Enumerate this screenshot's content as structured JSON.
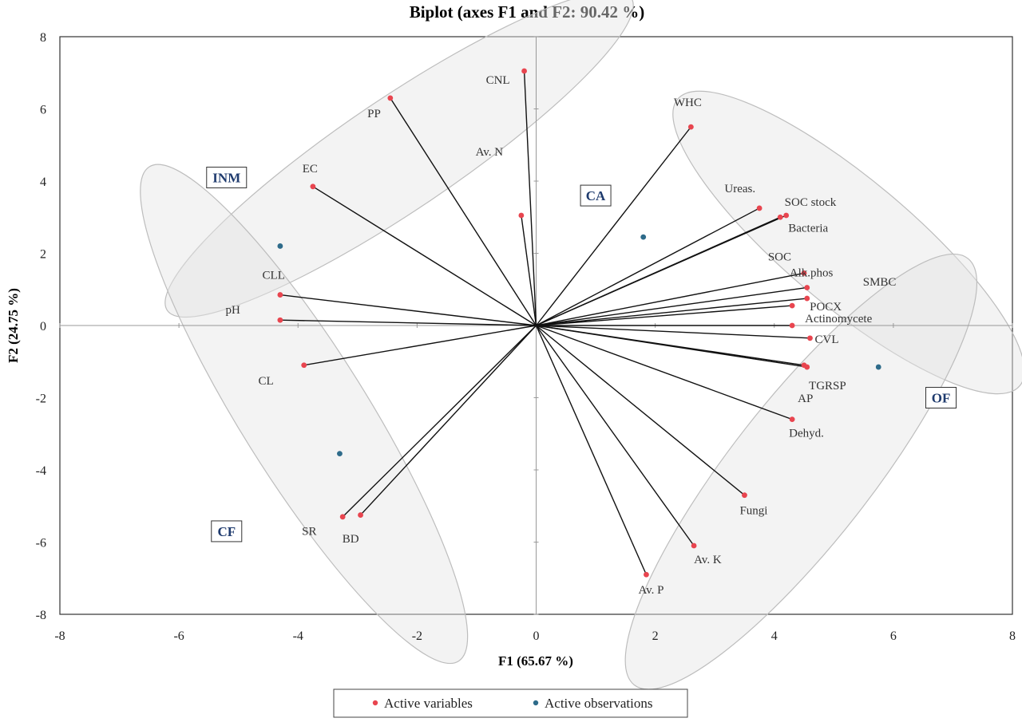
{
  "chart_data": {
    "type": "scatter",
    "title": "Biplot (axes F1 and F2: 90.42 %)",
    "xlabel": "F1 (65.67 %)",
    "ylabel": "F2 (24.75 %)",
    "xlim": [
      -8,
      8
    ],
    "ylim": [
      -8,
      8
    ],
    "xticks": [
      "-8",
      "-6",
      "-4",
      "-2",
      "0",
      "2",
      "4",
      "6",
      "8"
    ],
    "yticks": [
      "-8",
      "-6",
      "-4",
      "-2",
      "0",
      "2",
      "4",
      "6",
      "8"
    ],
    "grid": false,
    "legend_position": "bottom",
    "colors": {
      "variables": "#e8454f",
      "observations": "#2e6b8a",
      "axes": "#999999",
      "group_labels": "#1f3b6e"
    },
    "series": [
      {
        "name": "Active variables",
        "points": [
          {
            "label": "CNL",
            "x": -0.2,
            "y": 7.05
          },
          {
            "label": "PP",
            "x": -2.45,
            "y": 6.3
          },
          {
            "label": "Av. N",
            "x": -0.25,
            "y": 3.05
          },
          {
            "label": "EC",
            "x": -3.75,
            "y": 3.85
          },
          {
            "label": "WHC",
            "x": 2.6,
            "y": 5.5
          },
          {
            "label": "Ureas.",
            "x": 3.75,
            "y": 3.25
          },
          {
            "label": "SOC stock",
            "x": 4.2,
            "y": 3.05
          },
          {
            "label": "Bacteria",
            "x": 4.1,
            "y": 3.0
          },
          {
            "label": "SOC",
            "x": 4.5,
            "y": 1.45
          },
          {
            "label": "Alk.phos",
            "x": 4.55,
            "y": 1.05
          },
          {
            "label": "SMBC",
            "x": 4.55,
            "y": 0.75
          },
          {
            "label": "POCX",
            "x": 4.3,
            "y": 0.55
          },
          {
            "label": "Actinomycete",
            "x": 4.3,
            "y": 0.0
          },
          {
            "label": "CVL",
            "x": 4.6,
            "y": -0.35
          },
          {
            "label": "TGRSP",
            "x": 4.5,
            "y": -1.1
          },
          {
            "label": "AP",
            "x": 4.55,
            "y": -1.15
          },
          {
            "label": "Dehyd.",
            "x": 4.3,
            "y": -2.6
          },
          {
            "label": "Fungi",
            "x": 3.5,
            "y": -4.7
          },
          {
            "label": "Av. K",
            "x": 2.65,
            "y": -6.1
          },
          {
            "label": "Av. P",
            "x": 1.85,
            "y": -6.9
          },
          {
            "label": "CLL",
            "x": -4.3,
            "y": 0.85
          },
          {
            "label": "pH",
            "x": -4.3,
            "y": 0.15
          },
          {
            "label": "CL",
            "x": -3.9,
            "y": -1.1
          },
          {
            "label": "SR",
            "x": -2.95,
            "y": -5.25
          },
          {
            "label": "BD",
            "x": -3.25,
            "y": -5.3
          }
        ]
      },
      {
        "name": "Active observations",
        "points": [
          {
            "label": "INM",
            "x": -4.3,
            "y": 2.2
          },
          {
            "label": "CA",
            "x": 1.8,
            "y": 2.45
          },
          {
            "label": "OF",
            "x": 5.75,
            "y": -1.15
          },
          {
            "label": "CF",
            "x": -3.3,
            "y": -3.55
          }
        ]
      }
    ],
    "groups": [
      {
        "label": "INM"
      },
      {
        "label": "CA"
      },
      {
        "label": "OF"
      },
      {
        "label": "CF"
      }
    ]
  }
}
